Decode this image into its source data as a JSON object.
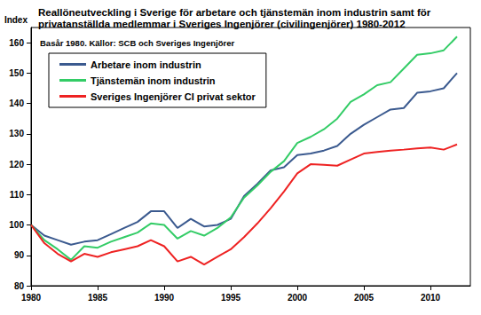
{
  "chart_data": {
    "type": "line",
    "title": "Reallöneutveckling i Sverige för arbetare och tjänstemän inom industrin samt för\nprivatanställda medlemmar i Sveriges Ingenjörer (civilingenjörer) 1980-2012",
    "subtitle": "Basår 1980. Källor: SCB och Sveriges Ingenjörer",
    "y_label": "Index",
    "x": [
      1980,
      1981,
      1982,
      1983,
      1984,
      1985,
      1986,
      1987,
      1988,
      1989,
      1990,
      1991,
      1992,
      1993,
      1994,
      1995,
      1996,
      1997,
      1998,
      1999,
      2000,
      2001,
      2002,
      2003,
      2004,
      2005,
      2006,
      2007,
      2008,
      2009,
      2010,
      2011,
      2012
    ],
    "series": [
      {
        "name": "Arbetare inom industrin",
        "color": "#3b5a8f",
        "values": [
          100,
          96.5,
          95,
          93.5,
          94.5,
          95,
          97,
          99,
          101,
          104.5,
          104.5,
          99,
          102,
          99.5,
          100,
          102,
          109.5,
          113.5,
          118,
          119,
          123,
          123.5,
          124.5,
          126,
          130,
          133,
          135.5,
          138,
          138.5,
          143.5,
          144,
          145,
          150
        ]
      },
      {
        "name": "Tjänstemän inom industrin",
        "color": "#33cc66",
        "values": [
          100,
          95,
          92,
          88.5,
          93,
          92.5,
          94.5,
          96,
          97.5,
          100.5,
          100,
          95.5,
          98,
          96.5,
          99,
          102.5,
          109,
          113,
          117.5,
          121,
          127,
          129,
          131.5,
          135,
          140.5,
          143,
          146,
          147,
          151.5,
          156,
          156.5,
          157.5,
          162
        ]
      },
      {
        "name": "Sveriges Ingenjörer CI privat sektor",
        "color": "#ee2222",
        "values": [
          100,
          94,
          90.5,
          88,
          90.5,
          89.5,
          91,
          92,
          93,
          95,
          93,
          88,
          89.5,
          87,
          89.5,
          92,
          96,
          100.5,
          105.5,
          111,
          117,
          120,
          119.8,
          119.5,
          121.5,
          123.5,
          124,
          124.5,
          124.8,
          125.2,
          125.5,
          124.8,
          126.5
        ]
      }
    ],
    "xlim": [
      1980,
      2013
    ],
    "xticks": [
      1980,
      1985,
      1990,
      1995,
      2000,
      2005,
      2010
    ],
    "ylim": [
      80,
      165
    ],
    "yticks": [
      80,
      90,
      100,
      110,
      120,
      130,
      140,
      150,
      160
    ],
    "grid": false,
    "legend": "upper left"
  }
}
